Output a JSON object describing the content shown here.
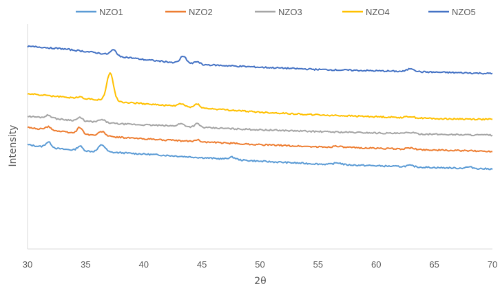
{
  "chart_data": {
    "type": "line",
    "title": "",
    "xlabel": "2θ",
    "ylabel": "Intensity",
    "xlim": [
      30,
      70
    ],
    "xticks": [
      "30",
      "35",
      "40",
      "45",
      "50",
      "55",
      "60",
      "65",
      "70"
    ],
    "y_tick_labels": false,
    "grid": false,
    "legend_position": "top",
    "series": [
      {
        "name": "NZO1",
        "color": "#5B9BD5",
        "base": {
          "x": [
            30,
            30.5,
            31,
            32,
            33,
            34,
            35,
            36,
            37,
            38,
            40,
            42,
            45,
            47,
            50,
            55,
            60,
            65,
            70
          ],
          "y": [
            232,
            230,
            228,
            225,
            222,
            220,
            218,
            216,
            215,
            214,
            211,
            208,
            203,
            200,
            195,
            189,
            185,
            181,
            178
          ]
        },
        "peaks": [
          {
            "x": 31.8,
            "h": 12,
            "w": 0.25
          },
          {
            "x": 34.5,
            "h": 10,
            "w": 0.22
          },
          {
            "x": 36.4,
            "h": 16,
            "w": 0.28
          },
          {
            "x": 47.6,
            "h": 5,
            "w": 0.3
          },
          {
            "x": 56.7,
            "h": 4,
            "w": 0.3
          },
          {
            "x": 62.9,
            "h": 3,
            "w": 0.3
          },
          {
            "x": 68.0,
            "h": 3,
            "w": 0.3
          }
        ]
      },
      {
        "name": "NZO2",
        "color": "#ED7D31",
        "base": {
          "x": [
            30,
            31,
            32,
            33,
            34,
            35,
            36,
            37,
            38,
            40,
            42,
            45,
            50,
            55,
            60,
            65,
            70
          ],
          "y": [
            270,
            267,
            264,
            261,
            258,
            255,
            252,
            250,
            248,
            245,
            242,
            238,
            232,
            227,
            224,
            220,
            217
          ]
        },
        "peaks": [
          {
            "x": 31.8,
            "h": 7,
            "w": 0.25
          },
          {
            "x": 34.5,
            "h": 14,
            "w": 0.22
          },
          {
            "x": 36.4,
            "h": 10,
            "w": 0.28
          },
          {
            "x": 44.6,
            "h": 4,
            "w": 0.25
          },
          {
            "x": 56.6,
            "h": 3,
            "w": 0.3
          },
          {
            "x": 62.9,
            "h": 3,
            "w": 0.3
          }
        ]
      },
      {
        "name": "NZO3",
        "color": "#A5A5A5",
        "base": {
          "x": [
            30,
            31,
            32,
            33,
            34,
            35,
            36,
            37,
            38,
            40,
            42,
            45,
            50,
            55,
            60,
            65,
            70
          ],
          "y": [
            295,
            293,
            291,
            288,
            286,
            284,
            282,
            280,
            278,
            276,
            274,
            270,
            265,
            261,
            258,
            255,
            253
          ]
        },
        "peaks": [
          {
            "x": 31.8,
            "h": 6,
            "w": 0.25
          },
          {
            "x": 34.5,
            "h": 7,
            "w": 0.22
          },
          {
            "x": 36.4,
            "h": 6,
            "w": 0.28
          },
          {
            "x": 43.2,
            "h": 6,
            "w": 0.3
          },
          {
            "x": 44.6,
            "h": 8,
            "w": 0.22
          },
          {
            "x": 62.9,
            "h": 3,
            "w": 0.3
          }
        ]
      },
      {
        "name": "NZO4",
        "color": "#FFC000",
        "base": {
          "x": [
            30,
            31,
            32,
            33,
            34,
            35,
            36,
            37,
            38,
            40,
            42,
            45,
            50,
            55,
            60,
            65,
            70
          ],
          "y": [
            345,
            343,
            340,
            338,
            336,
            334,
            332,
            330,
            327,
            323,
            319,
            313,
            304,
            298,
            294,
            290,
            288
          ]
        },
        "peaks": [
          {
            "x": 34.5,
            "h": 3,
            "w": 0.25
          },
          {
            "x": 37.1,
            "h": 62,
            "w": 0.28
          },
          {
            "x": 43.2,
            "h": 6,
            "w": 0.3
          },
          {
            "x": 44.6,
            "h": 9,
            "w": 0.22
          },
          {
            "x": 62.9,
            "h": 3,
            "w": 0.3
          }
        ]
      },
      {
        "name": "NZO5",
        "color": "#4472C4",
        "base": {
          "x": [
            30,
            31,
            32,
            33,
            34,
            35,
            36,
            37,
            38,
            40,
            42,
            45,
            50,
            55,
            60,
            65,
            70
          ],
          "y": [
            450,
            449,
            447,
            445,
            442,
            439,
            436,
            432,
            428,
            421,
            416,
            410,
            404,
            399,
            396,
            393,
            390
          ]
        },
        "peaks": [
          {
            "x": 37.4,
            "h": 12,
            "w": 0.25
          },
          {
            "x": 43.4,
            "h": 16,
            "w": 0.25
          },
          {
            "x": 44.6,
            "h": 6,
            "w": 0.22
          },
          {
            "x": 63.0,
            "h": 7,
            "w": 0.3
          }
        ]
      }
    ]
  }
}
